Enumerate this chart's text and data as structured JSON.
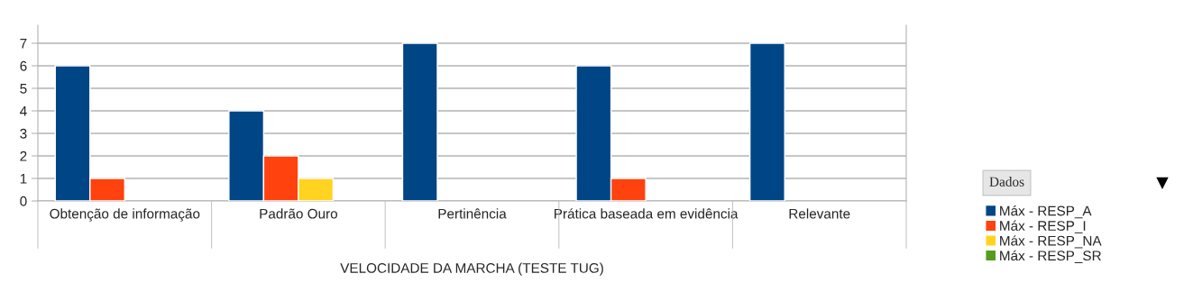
{
  "chart_data": {
    "type": "bar",
    "categories": [
      "Obtenção de informação",
      "Padrão Ouro",
      "Pertinência",
      "Prática baseada em evidência",
      "Relevante"
    ],
    "xlabel": "VELOCIDADE DA MARCHA (TESTE TUG)",
    "series": [
      {
        "name": "Máx - RESP_A",
        "color": "#004586",
        "values": [
          6,
          4,
          7,
          6,
          7
        ]
      },
      {
        "name": "Máx - RESP_I",
        "color": "#ff420e",
        "values": [
          1,
          2,
          null,
          1,
          null
        ]
      },
      {
        "name": "Máx - RESP_NA",
        "color": "#ffd320",
        "values": [
          null,
          1,
          null,
          null,
          null
        ]
      },
      {
        "name": "Máx - RESP_SR",
        "color": "#579d1c",
        "values": [
          null,
          null,
          null,
          null,
          null
        ]
      }
    ],
    "legend_title": "Dados",
    "legend": "right",
    "ylim": [
      0,
      7.8
    ],
    "yticks": [
      0,
      1,
      2,
      3,
      4,
      5,
      6,
      7
    ],
    "grid": "y"
  }
}
